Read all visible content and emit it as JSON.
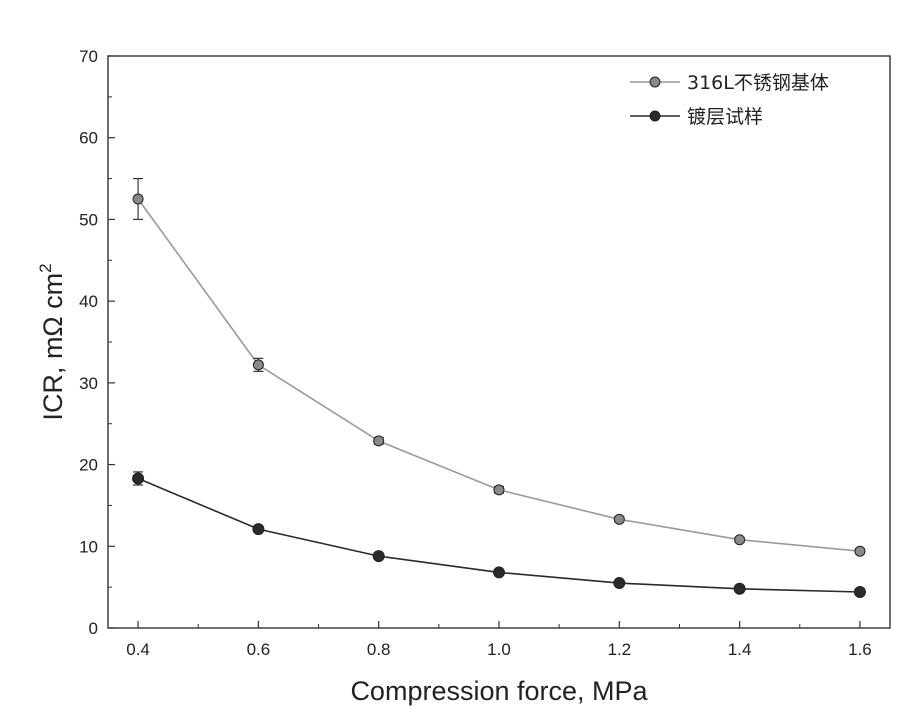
{
  "chart_data": {
    "type": "line",
    "title": "",
    "xlabel": "Compression force, MPa",
    "ylabel": "ICR, mΩ cm",
    "ylabel_superscript": "2",
    "xlim": [
      0.35,
      1.65
    ],
    "ylim": [
      0,
      70
    ],
    "xticks": [
      "0.4",
      "0.6",
      "0.8",
      "1.0",
      "1.2",
      "1.4",
      "1.6"
    ],
    "yticks": [
      "0",
      "10",
      "20",
      "30",
      "40",
      "50",
      "60",
      "70"
    ],
    "x": [
      0.4,
      0.6,
      0.8,
      1.0,
      1.2,
      1.4,
      1.6
    ],
    "legend_position": "top-right",
    "grid": false,
    "series": [
      {
        "name": "316L不锈钢基体",
        "values": [
          52.5,
          32.2,
          22.9,
          16.9,
          13.3,
          10.8,
          9.4
        ],
        "errors": [
          2.5,
          0.8,
          0.4,
          0.4,
          0.3,
          0.3,
          0.3
        ],
        "color": "#8a8a8a"
      },
      {
        "name": "镀层试样",
        "values": [
          18.3,
          12.1,
          8.8,
          6.8,
          5.5,
          4.8,
          4.4
        ],
        "errors": [
          0.8,
          0.3,
          0.2,
          0.2,
          0.2,
          0.2,
          0.2
        ],
        "color": "#2a2a2a"
      }
    ]
  }
}
